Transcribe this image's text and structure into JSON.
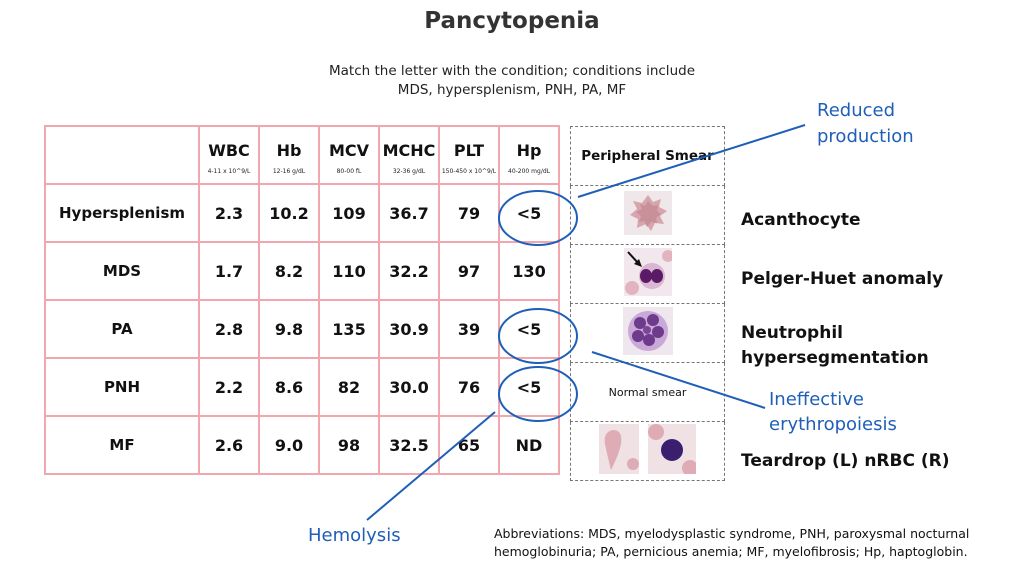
{
  "title": "Pancytopenia",
  "instructions": {
    "line1": "Match the letter with the condition; conditions include",
    "line2": "MDS, hypersplenism, PNH, PA, MF"
  },
  "table": {
    "columns": [
      {
        "name": "WBC",
        "range": "4-11 x 10^9/L"
      },
      {
        "name": "Hb",
        "range": "12-16 g/dL"
      },
      {
        "name": "MCV",
        "range": "80-00 fL"
      },
      {
        "name": "MCHC",
        "range": "32-36 g/dL"
      },
      {
        "name": "PLT",
        "range": "150-450 x 10^9/L"
      },
      {
        "name": "Hp",
        "range": "40-200 mg/dL"
      }
    ],
    "rows": [
      {
        "condition": "Hypersplenism",
        "values": [
          "2.3",
          "10.2",
          "109",
          "36.7",
          "79",
          "<5"
        ]
      },
      {
        "condition": "MDS",
        "values": [
          "1.7",
          "8.2",
          "110",
          "32.2",
          "97",
          "130"
        ]
      },
      {
        "condition": "PA",
        "values": [
          "2.8",
          "9.8",
          "135",
          "30.9",
          "39",
          "<5"
        ]
      },
      {
        "condition": "PNH",
        "values": [
          "2.2",
          "8.6",
          "82",
          "30.0",
          "76",
          "<5"
        ]
      },
      {
        "condition": "MF",
        "values": [
          "2.6",
          "9.0",
          "98",
          "32.5",
          "65",
          "ND"
        ]
      }
    ]
  },
  "smear": {
    "header": "Peripheral Smear",
    "normal_label": "Normal smear",
    "images": [
      "acanthocyte-image",
      "pelger-huet-image",
      "hypersegmented-neutrophil-image",
      "normal-smear",
      "teardrop-and-nrbc-images"
    ]
  },
  "peripheral_findings": [
    "Acanthocyte",
    "Pelger-Huet anomaly",
    "Neutrophil",
    "hypersegmentation",
    "Teardrop (L) nRBC (R)"
  ],
  "annotations": {
    "reduced_line1": "Reduced",
    "reduced_line2": "production",
    "ineffective_line1": "Ineffective",
    "ineffective_line2": "erythropoiesis",
    "hemolysis": "Hemolysis",
    "color": "#1f5fb8"
  },
  "abbreviations": {
    "line1": "Abbreviations: MDS, myelodysplastic syndrome, PNH, paroxysmal nocturnal",
    "line2": "hemoglobinuria; PA, pernicious anemia; MF, myelofibrosis; Hp, haptoglobin."
  }
}
